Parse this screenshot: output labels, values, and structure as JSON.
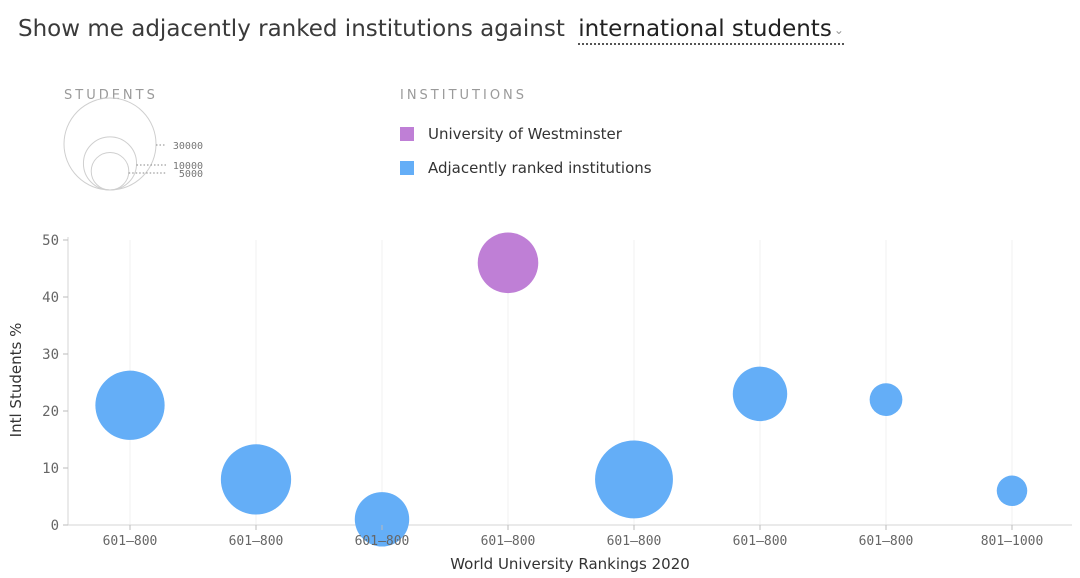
{
  "header": {
    "prefix": "Show me adjacently ranked institutions against",
    "selected_metric": "international students"
  },
  "size_legend": {
    "title": "STUDENTS",
    "values": [
      30000,
      10000,
      5000
    ],
    "labels": [
      "30000",
      "10000",
      "5000"
    ]
  },
  "institutions_legend": {
    "title": "INSTITUTIONS",
    "items": [
      {
        "label": "University of Westminster",
        "color": "#bf7fd6"
      },
      {
        "label": "Adjacently ranked institutions",
        "color": "#64aef7"
      }
    ]
  },
  "chart_data": {
    "type": "scatter",
    "xlabel": "World University Rankings 2020",
    "ylabel": "Intl Students %",
    "ylim": [
      0,
      50
    ],
    "yticks": [
      0,
      10,
      20,
      30,
      40,
      50
    ],
    "categories": [
      "601–800",
      "601–800",
      "601–800",
      "601–800",
      "601–800",
      "601–800",
      "601–800",
      "801–1000"
    ],
    "series": [
      {
        "name": "Adjacently ranked institutions",
        "color": "#64aef7",
        "points": [
          {
            "x_index": 0,
            "y": 21,
            "students": 17000
          },
          {
            "x_index": 1,
            "y": 8,
            "students": 17500
          },
          {
            "x_index": 2,
            "y": 1,
            "students": 10500
          },
          {
            "x_index": 4,
            "y": 8,
            "students": 21500
          },
          {
            "x_index": 5,
            "y": 23,
            "students": 10500
          },
          {
            "x_index": 6,
            "y": 22,
            "students": 3800
          },
          {
            "x_index": 7,
            "y": 6,
            "students": 3300
          }
        ]
      },
      {
        "name": "University of Westminster",
        "color": "#bf7fd6",
        "points": [
          {
            "x_index": 3,
            "y": 46,
            "students": 13000
          }
        ]
      }
    ],
    "grid": true
  }
}
